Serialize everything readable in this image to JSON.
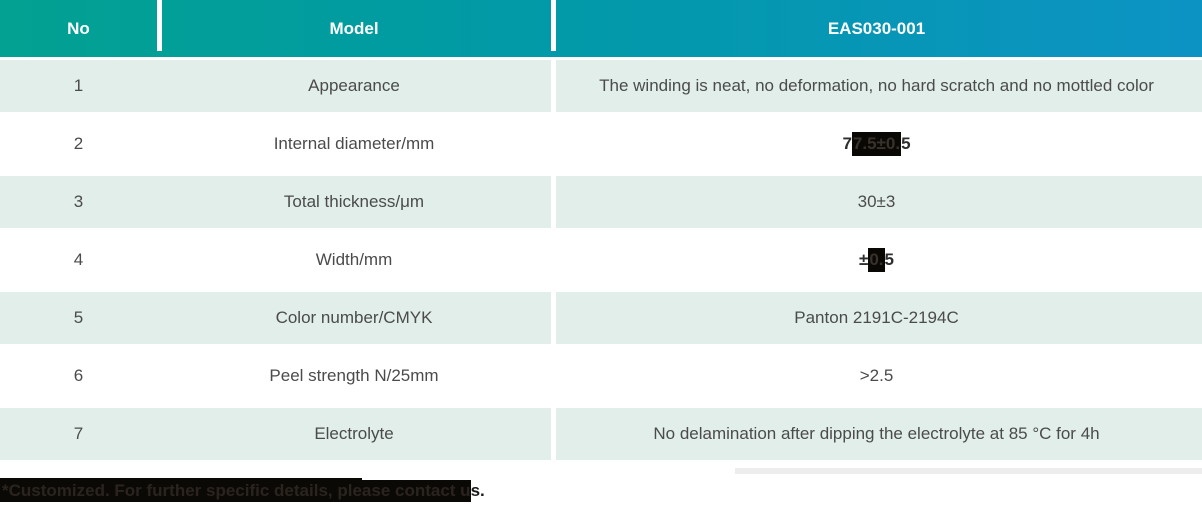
{
  "table": {
    "header": {
      "no": "No",
      "model": "Model",
      "value": "EAS030-001"
    },
    "rows": [
      {
        "no": "1",
        "model": "Appearance",
        "value": "The winding is neat, no deformation, no hard scratch and no mottled color"
      },
      {
        "no": "2",
        "model": "Internal diameter/mm",
        "value_prefix": "7",
        "value_redacted": "7.5±0.",
        "value_suffix": "5"
      },
      {
        "no": "3",
        "model": "Total thickness/μm",
        "value": "30±3"
      },
      {
        "no": "4",
        "model": "Width/mm",
        "value_prefix": "±",
        "value_redacted": "0.",
        "value_suffix": "5"
      },
      {
        "no": "5",
        "model": "Color number/CMYK",
        "value": "Panton 2191C-2194C"
      },
      {
        "no": "6",
        "model": "Peel strength N/25mm",
        "value": ">2.5"
      },
      {
        "no": "7",
        "model": "Electrolyte",
        "value": "No delamination after dipping the electrolyte at 85 °C for 4h"
      }
    ],
    "footer": {
      "redacted_1": "*Customized. For further specific details, ple",
      "redacted_2": "ase contact u",
      "visible": "s."
    }
  },
  "colors": {
    "header_gradient_start": "#02a191",
    "header_gradient_end": "#0c93c4",
    "row_mint": "#e1eeea",
    "body_text": "#4b4b4b",
    "redaction_black": "#0a0805"
  }
}
